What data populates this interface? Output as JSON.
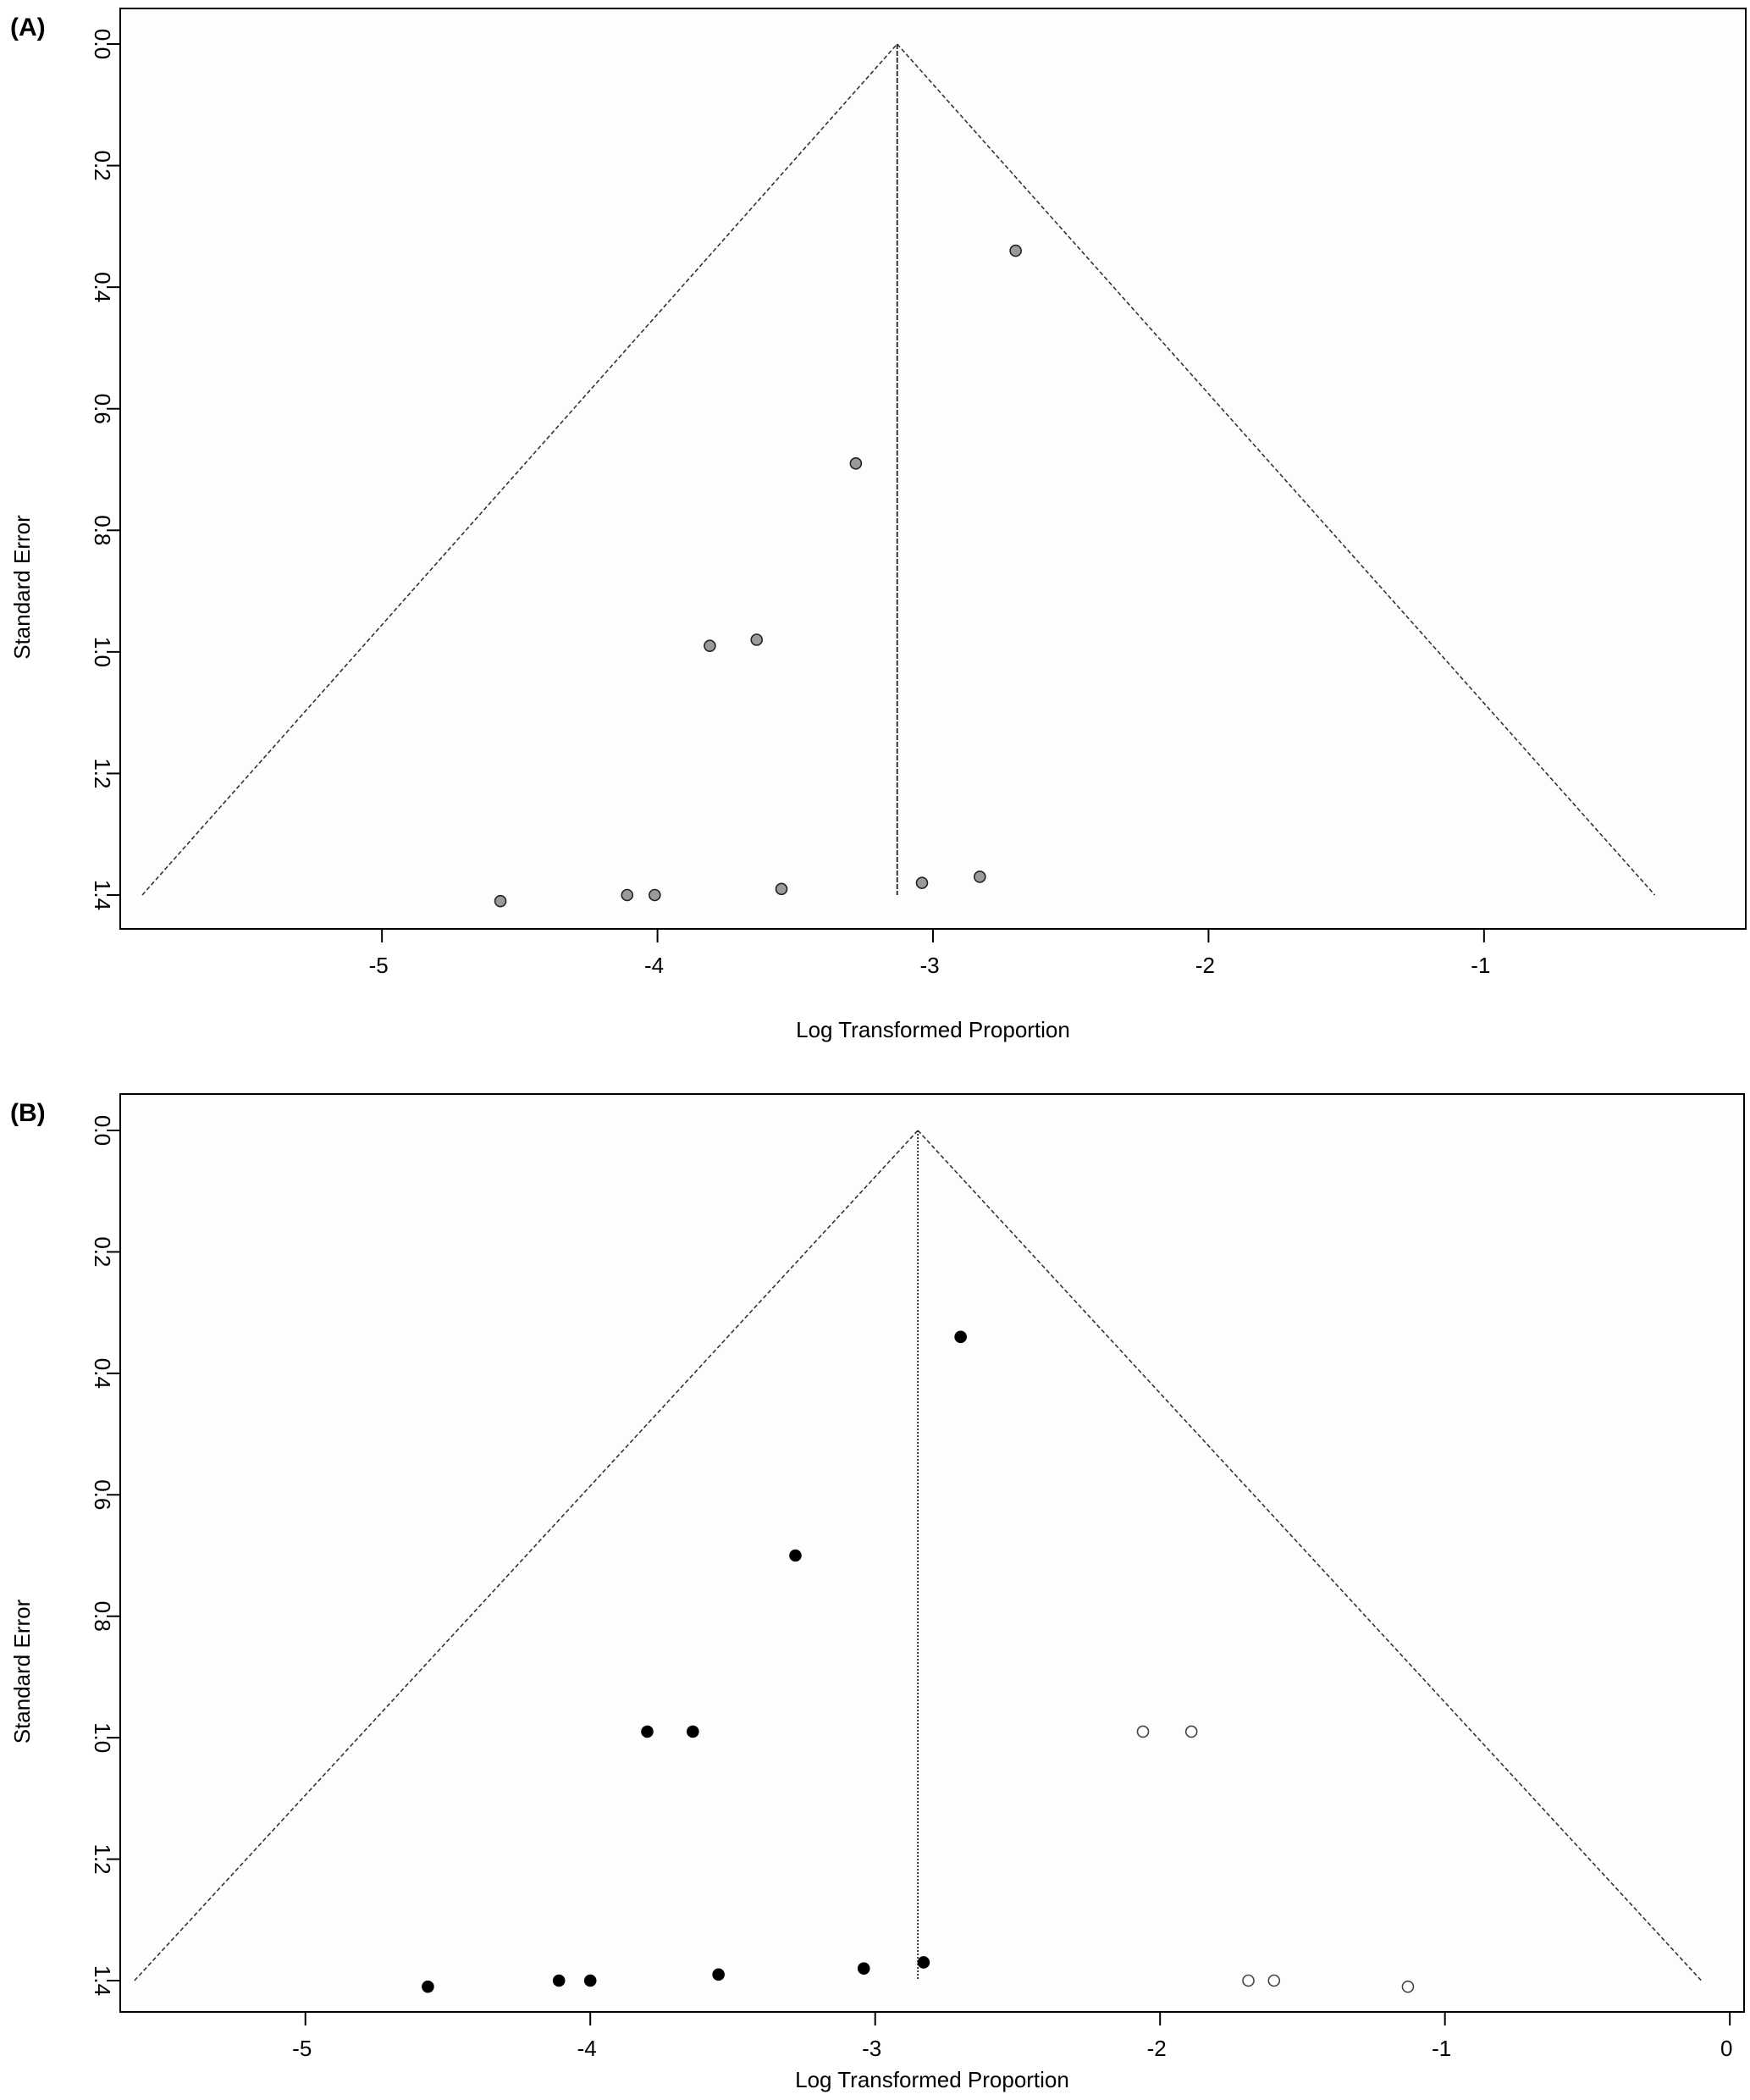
{
  "chart_data": [
    {
      "panel_label": "(A)",
      "type": "scatter",
      "subtype": "funnel-plot",
      "xlabel": "Log Transformed Proportion",
      "ylabel": "Standard Error",
      "xlim": [
        -5.95,
        -0.05
      ],
      "ylim": [
        0,
        1.46
      ],
      "y_reversed": true,
      "x_ticks": [
        -5,
        -4,
        -3,
        -2,
        -1
      ],
      "x_tick_labels": [
        "-5",
        "-4",
        "-3",
        "-2",
        "-1"
      ],
      "y_ticks": [
        0,
        0.2,
        0.4,
        0.6,
        0.8,
        1.0,
        1.2,
        1.4
      ],
      "y_tick_labels": [
        "0.0",
        "0.2",
        "0.4",
        "0.6",
        "0.8",
        "1.0",
        "1.2",
        "1.4"
      ],
      "funnel": {
        "apex_x": -3.13,
        "apex_y": 0.0,
        "left_x": -5.87,
        "right_x": -0.38,
        "base_y": 1.4
      },
      "center_line": {
        "x": -3.13,
        "y_top": 0.0,
        "y_bottom": 1.4
      },
      "series": [
        {
          "marker": "filled-gray",
          "x": [
            -2.7,
            -3.28,
            -3.81,
            -3.64,
            -4.57,
            -4.11,
            -4.01,
            -3.55,
            -3.04,
            -2.83
          ],
          "y": [
            0.34,
            0.69,
            0.99,
            0.98,
            1.41,
            1.4,
            1.4,
            1.39,
            1.38,
            1.37
          ]
        }
      ],
      "grid": false
    },
    {
      "panel_label": "(B)",
      "type": "scatter",
      "subtype": "funnel-plot",
      "xlabel": "Log Transformed Proportion",
      "ylabel": "Standard Error",
      "xlim": [
        -5.65,
        0.05
      ],
      "ylim": [
        0,
        1.46
      ],
      "y_reversed": true,
      "x_ticks": [
        -5,
        -4,
        -3,
        -2,
        -1,
        0
      ],
      "x_tick_labels": [
        "-5",
        "-4",
        "-3",
        "-2",
        "-1",
        "0"
      ],
      "y_ticks": [
        0,
        0.2,
        0.4,
        0.6,
        0.8,
        1.0,
        1.2,
        1.4
      ],
      "y_tick_labels": [
        "0.0",
        "0.2",
        "0.4",
        "0.6",
        "0.8",
        "1.0",
        "1.2",
        "1.4"
      ],
      "funnel": {
        "apex_x": -2.85,
        "apex_y": 0.0,
        "left_x": -5.6,
        "right_x": -0.1,
        "base_y": 1.4
      },
      "center_line": {
        "x": -2.85,
        "y_top": 0.0,
        "y_bottom": 1.4
      },
      "series": [
        {
          "marker": "filled-black",
          "x": [
            -2.7,
            -3.28,
            -3.8,
            -3.64,
            -4.57,
            -4.11,
            -4.0,
            -3.55,
            -3.04,
            -2.83
          ],
          "y": [
            0.34,
            0.7,
            0.99,
            0.99,
            1.41,
            1.4,
            1.4,
            1.39,
            1.38,
            1.37
          ]
        },
        {
          "marker": "open",
          "x": [
            -2.06,
            -1.89,
            -1.69,
            -1.6,
            -1.13
          ],
          "y": [
            0.99,
            0.99,
            1.4,
            1.4,
            1.41
          ]
        }
      ],
      "grid": false
    }
  ]
}
